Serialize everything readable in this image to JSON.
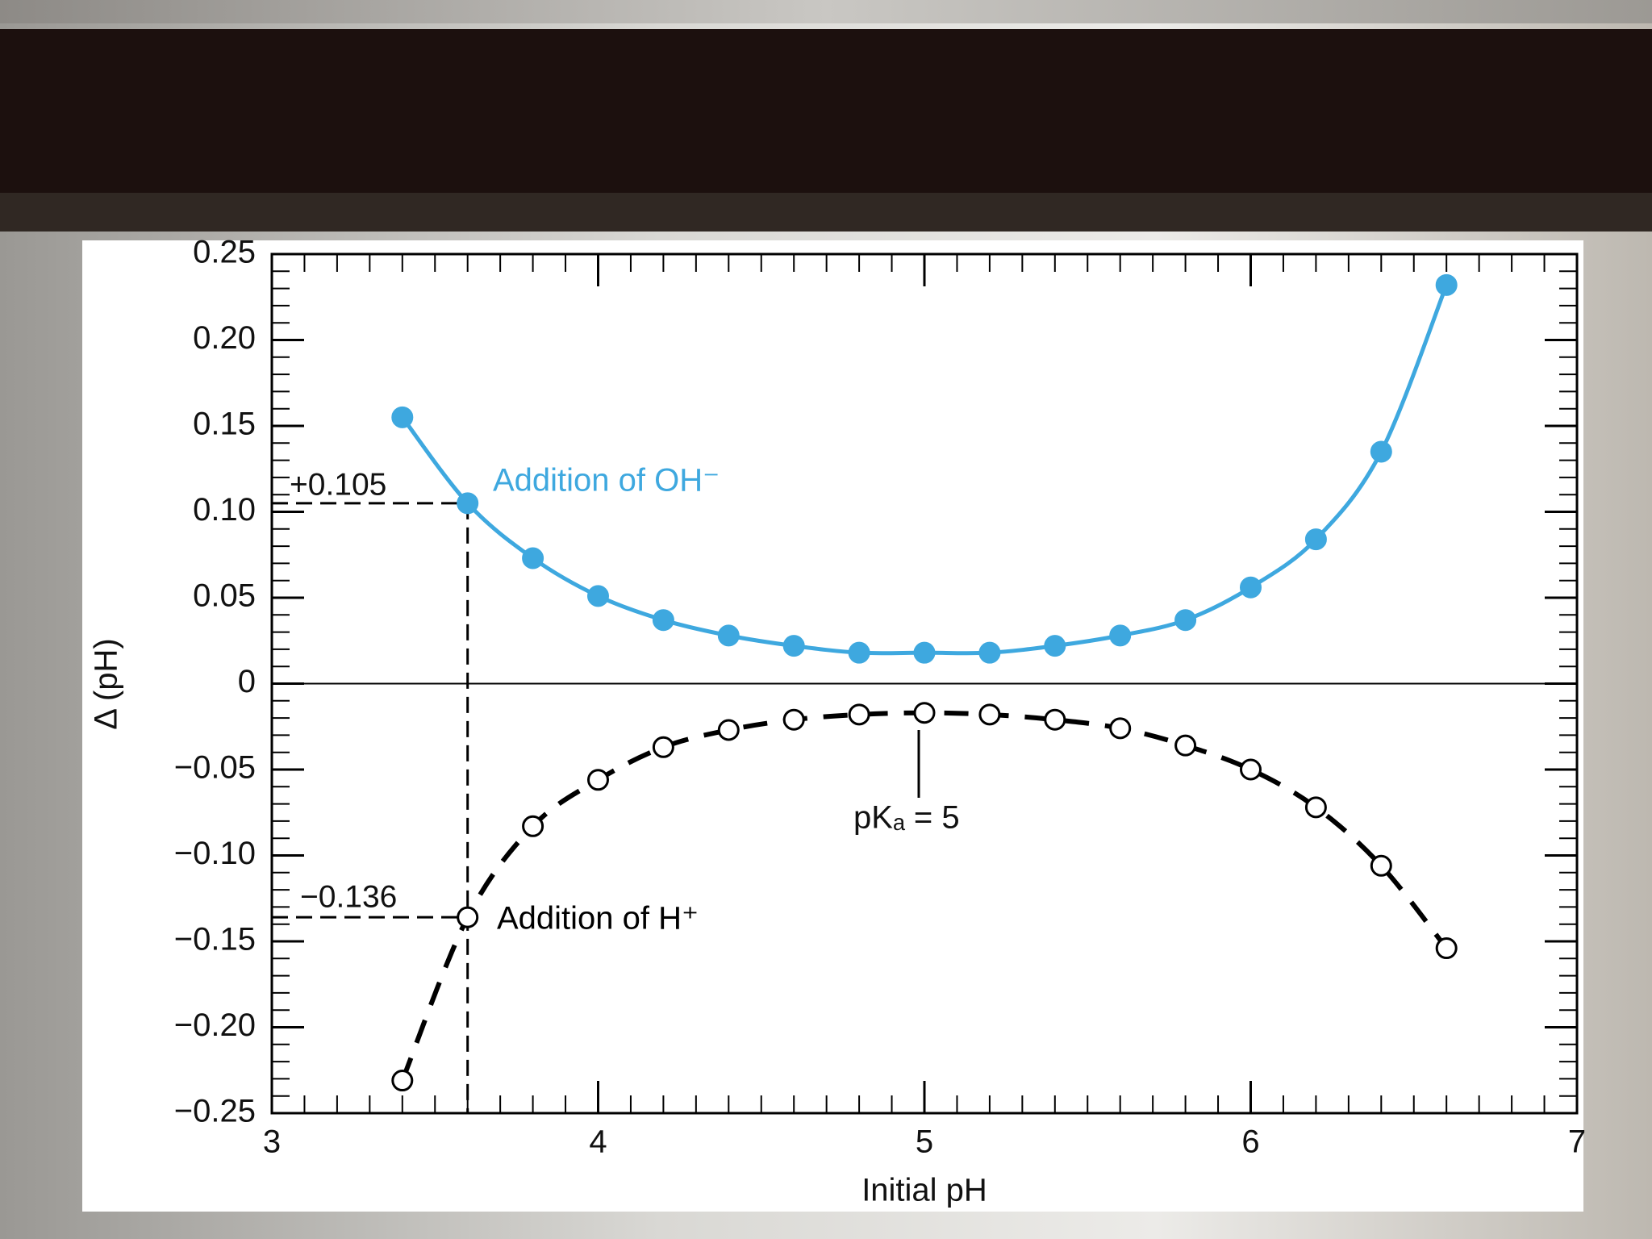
{
  "chart_data": {
    "type": "line",
    "x_label": "Initial pH",
    "y_label": "Δ (pH)",
    "x": [
      3.4,
      3.6,
      3.8,
      4.0,
      4.2,
      4.4,
      4.6,
      4.8,
      5.0,
      5.2,
      5.4,
      5.6,
      5.8,
      6.0,
      6.2,
      6.4,
      6.6
    ],
    "series": [
      {
        "name": "Addition of OH⁻",
        "color": "#3ea8df",
        "line_style": "solid",
        "marker": "filled",
        "values": [
          0.155,
          0.105,
          0.073,
          0.051,
          0.037,
          0.028,
          0.022,
          0.018,
          0.018,
          0.018,
          0.022,
          0.028,
          0.037,
          0.056,
          0.084,
          0.135,
          0.232
        ]
      },
      {
        "name": "Addition of H⁺",
        "color": "#000000",
        "line_style": "dashed",
        "marker": "open",
        "values": [
          -0.231,
          -0.136,
          -0.083,
          -0.056,
          -0.037,
          -0.027,
          -0.021,
          -0.018,
          -0.017,
          -0.018,
          -0.021,
          -0.026,
          -0.036,
          -0.05,
          -0.072,
          -0.106,
          -0.154
        ]
      }
    ],
    "annotations": {
      "oh_value": "+0.105",
      "h_value": "−0.136",
      "pka": "pKₐ = 5"
    },
    "xlim": [
      3,
      7
    ],
    "xticks": [
      3,
      4,
      5,
      6,
      7
    ],
    "ylim": [
      -0.25,
      0.25
    ],
    "yticks": [
      {
        "value": -0.25,
        "label": "−0.25"
      },
      {
        "value": -0.2,
        "label": "−0.20"
      },
      {
        "value": -0.15,
        "label": "−0.15"
      },
      {
        "value": -0.1,
        "label": "−0.10"
      },
      {
        "value": -0.05,
        "label": "−0.05"
      },
      0,
      {
        "value": 0.05,
        "label": "0.05"
      },
      {
        "value": 0.1,
        "label": "0.10"
      },
      {
        "value": 0.15,
        "label": "0.15"
      },
      {
        "value": 0.2,
        "label": "0.20"
      },
      {
        "value": 0.25,
        "label": "0.25"
      }
    ],
    "minor_ticks": {
      "x": 10,
      "y": 5
    }
  }
}
